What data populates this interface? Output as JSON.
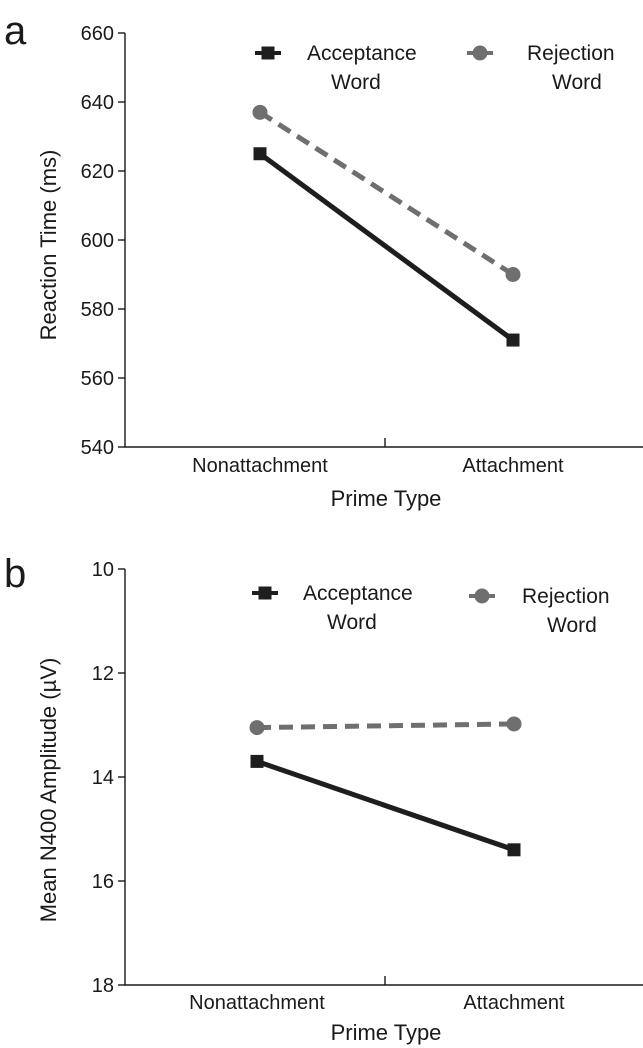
{
  "colors": {
    "acceptance": "#1e1e1e",
    "rejection": "#6f6f6f",
    "axis": "#1a1a1a"
  },
  "chart_data": [
    {
      "panel": "a",
      "type": "line",
      "categories": [
        "Nonattachment",
        "Attachment"
      ],
      "xlabel": "Prime Type",
      "ylabel": "Reaction Time (ms)",
      "ylim": [
        540,
        660
      ],
      "yticks": [
        540,
        560,
        580,
        600,
        620,
        640,
        660
      ],
      "y_inverted": false,
      "legend_position": "top-right",
      "series": [
        {
          "legend_lines": [
            "Acceptance",
            "Word"
          ],
          "key": "acceptance",
          "marker": "square",
          "dash": "solid",
          "values": [
            625,
            571
          ]
        },
        {
          "legend_lines": [
            "Rejection",
            "Word"
          ],
          "key": "rejection",
          "marker": "circle",
          "dash": "dashed",
          "values": [
            637,
            590
          ]
        }
      ]
    },
    {
      "panel": "b",
      "type": "line",
      "categories": [
        "Nonattachment",
        "Attachment"
      ],
      "xlabel": "Prime Type",
      "ylabel": "Mean N400 Amplitude (µV)",
      "ylim": [
        10,
        18
      ],
      "yticks": [
        10,
        12,
        14,
        16,
        18
      ],
      "y_inverted": true,
      "legend_position": "top-right",
      "series": [
        {
          "legend_lines": [
            "Acceptance",
            "Word"
          ],
          "key": "acceptance",
          "marker": "square",
          "dash": "solid",
          "values": [
            13.7,
            15.4
          ]
        },
        {
          "legend_lines": [
            "Rejection",
            "Word"
          ],
          "key": "rejection",
          "marker": "circle",
          "dash": "dashed",
          "values": [
            13.05,
            12.98
          ]
        }
      ]
    }
  ]
}
